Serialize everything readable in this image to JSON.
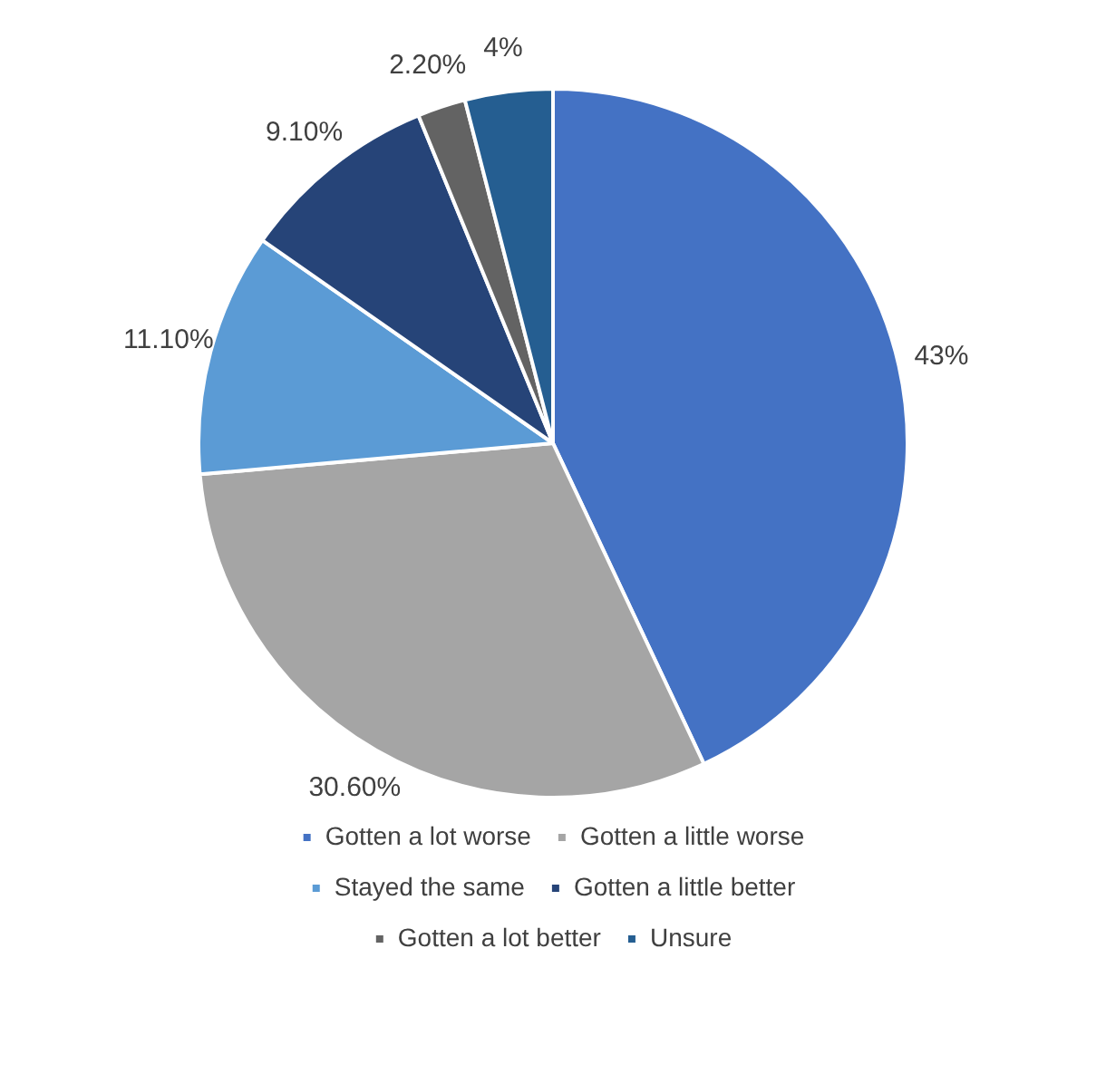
{
  "chart_data": {
    "type": "pie",
    "categories": [
      "Gotten a lot worse",
      "Gotten a little worse",
      "Stayed the same",
      "Gotten a little better",
      "Gotten a lot better",
      "Unsure"
    ],
    "values": [
      43,
      30.6,
      11.1,
      9.1,
      2.2,
      4
    ],
    "colors": [
      "#4472c4",
      "#a5a5a5",
      "#5b9bd5",
      "#264478",
      "#636363",
      "#255e91"
    ],
    "value_labels": [
      "43%",
      "30.60%",
      "11.10%",
      "9.10%",
      "2.20%",
      "4%"
    ],
    "legend": "bottom"
  }
}
